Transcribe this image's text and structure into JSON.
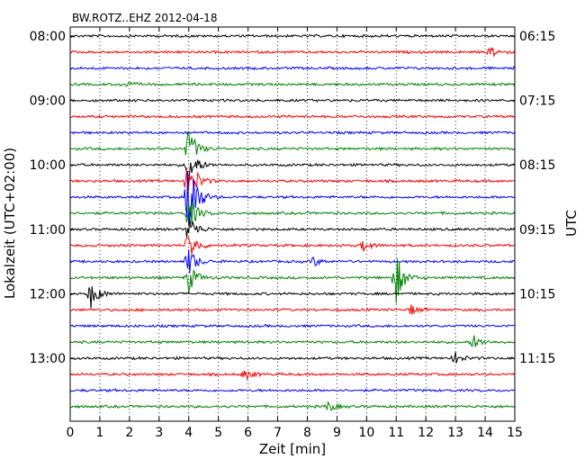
{
  "chart_data": {
    "type": "line",
    "title": "BW.ROTZ..EHZ 2012-04-18",
    "xlabel": "Zeit  [min]",
    "ylabel_left": "Lokalzeit (UTC+02:00)",
    "ylabel_right": "UTC",
    "xlim": [
      0,
      15
    ],
    "x_ticks": [
      "0",
      "1",
      "2",
      "3",
      "4",
      "5",
      "6",
      "7",
      "8",
      "9",
      "10",
      "11",
      "12",
      "13",
      "14",
      "15"
    ],
    "left_tick_labels": [
      "08:00",
      "09:00",
      "10:00",
      "11:00",
      "12:00",
      "13:00"
    ],
    "right_tick_labels": [
      "06:15",
      "07:15",
      "08:15",
      "09:15",
      "10:15",
      "11:15"
    ],
    "grid": true,
    "trace_colors": [
      "#000000",
      "#ff0000",
      "#0000ff",
      "#008000"
    ],
    "trace_count": 24,
    "trace_interval_min": 15,
    "events": [
      {
        "trace": 1,
        "x": 14.2,
        "amp": 0.35
      },
      {
        "trace": 3,
        "x": 1.8,
        "amp": 0.2
      },
      {
        "trace": 7,
        "x": 4.0,
        "amp": 1.3
      },
      {
        "trace": 8,
        "x": 4.0,
        "amp": 1.4
      },
      {
        "trace": 9,
        "x": 4.0,
        "amp": 1.8
      },
      {
        "trace": 10,
        "x": 4.0,
        "amp": 3.2
      },
      {
        "trace": 11,
        "x": 4.0,
        "amp": 1.2
      },
      {
        "trace": 12,
        "x": 4.0,
        "amp": 1.0
      },
      {
        "trace": 13,
        "x": 4.0,
        "amp": 1.0
      },
      {
        "trace": 14,
        "x": 4.0,
        "amp": 0.9
      },
      {
        "trace": 15,
        "x": 4.0,
        "amp": 0.9
      },
      {
        "trace": 13,
        "x": 9.9,
        "amp": 0.35
      },
      {
        "trace": 14,
        "x": 8.2,
        "amp": 0.3
      },
      {
        "trace": 15,
        "x": 11.0,
        "amp": 1.6
      },
      {
        "trace": 16,
        "x": 0.7,
        "amp": 0.9
      },
      {
        "trace": 17,
        "x": 11.5,
        "amp": 0.3
      },
      {
        "trace": 19,
        "x": 13.6,
        "amp": 0.45
      },
      {
        "trace": 20,
        "x": 13.0,
        "amp": 0.35
      },
      {
        "trace": 21,
        "x": 5.9,
        "amp": 0.3
      },
      {
        "trace": 23,
        "x": 8.7,
        "amp": 0.3
      }
    ]
  }
}
